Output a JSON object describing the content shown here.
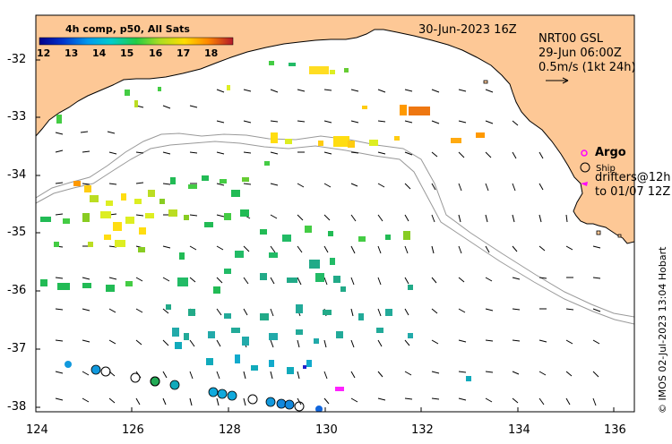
{
  "colorbar": {
    "title": "4h comp, p50, All Sats",
    "ticks": [
      "12",
      "13",
      "14",
      "15",
      "16",
      "17",
      "18"
    ]
  },
  "header": {
    "datetime": "30-Jun-2023 16Z"
  },
  "product": {
    "line1": "NRT00 GSL",
    "line2": "29-Jun 06:00Z",
    "line3": "0.5m/s (1kt 24h)"
  },
  "legend": {
    "argo_label": "Argo",
    "ship_label": "Ship",
    "drifters_line1": "drifters@12h",
    "drifters_line2": "to 01/07 12Z",
    "argo_color": "#ff00ff",
    "drifter_color": "#ff00ff"
  },
  "axes": {
    "x_ticks": [
      "124",
      "126",
      "128",
      "130",
      "132",
      "134",
      "136"
    ],
    "y_ticks": [
      "-32",
      "-33",
      "-34",
      "-35",
      "-36",
      "-37",
      "-38"
    ]
  },
  "credit": "© IMOS 02-Jul-2023 13:04 Hobart",
  "colors": {
    "land": "#fdc896",
    "sst_cold": "#00008b",
    "sst_warm": "#b2182b"
  }
}
